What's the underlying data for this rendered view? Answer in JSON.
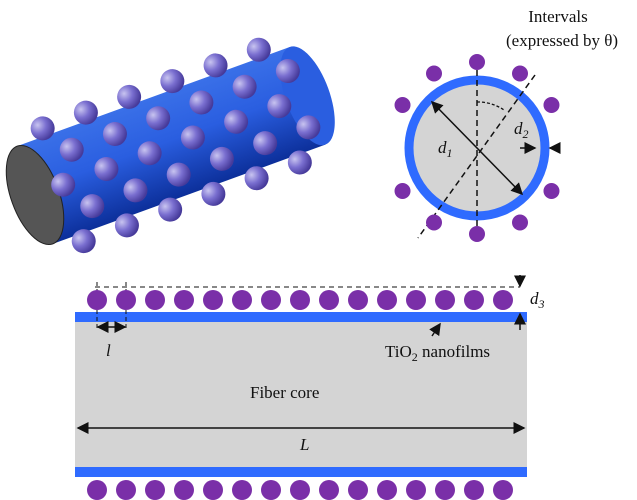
{
  "intervals": {
    "line1": "Intervals",
    "line2": "(expressed by θ)"
  },
  "d1": {
    "symbol": "d",
    "sub": "1"
  },
  "d2": {
    "symbol": "d",
    "sub": "2"
  },
  "d3": {
    "symbol": "d",
    "sub": "3"
  },
  "spacing": "l",
  "film": {
    "pre": "TiO",
    "sub": "2",
    "post": " nanofilms"
  },
  "core": "Fiber core",
  "length": "L"
}
